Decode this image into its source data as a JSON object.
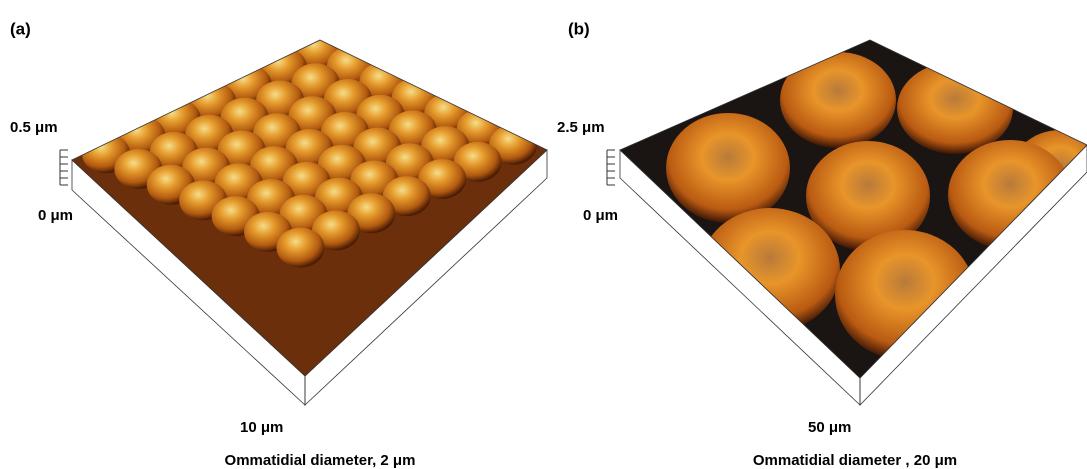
{
  "panels": [
    {
      "label": "(a)",
      "z_top": "0.5 μm",
      "z_bottom": "0 μm",
      "x_extent": "10 μm",
      "caption": "Ommatidial diameter, 2 μm"
    },
    {
      "label": "(b)",
      "z_top": "2.5 μm",
      "z_bottom": "0 μm",
      "x_extent": "50 μm",
      "caption": "Ommatidial diameter , 20 μm"
    }
  ]
}
